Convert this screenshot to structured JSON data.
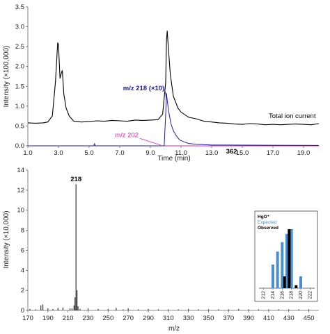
{
  "chart_data": [
    {
      "type": "line",
      "xlabel": "Time (min)",
      "ylabel": "Intensity (×100,000)",
      "xlim": [
        1.0,
        20.0
      ],
      "ylim": [
        0,
        3.5
      ],
      "xticks": [
        "1.0",
        "3.0",
        "5.0",
        "7.0",
        "9.0",
        "11.0",
        "13.0",
        "15.0",
        "17.0",
        "19.0"
      ],
      "yticks": [
        "0.0",
        "0.5",
        "1.0",
        "1.5",
        "2.0",
        "2.5",
        "3.0",
        "3.5"
      ],
      "annotations": [
        {
          "text": "m/z 218 (×10)",
          "color": "#1a1aaa",
          "x": 10.1,
          "y": 1.4
        },
        {
          "text": "Total ion current",
          "color": "#000000",
          "x": 19.8,
          "y": 0.7
        },
        {
          "text": "m/z 202",
          "color": "#e020b0",
          "x": 9.5,
          "y": 0.08
        },
        {
          "text": "362",
          "color": "#000000",
          "x": 14.3,
          "y": 0.0
        }
      ],
      "series": [
        {
          "name": "Total ion current",
          "color": "#000000",
          "x": [
            1.0,
            1.5,
            2.0,
            2.3,
            2.6,
            2.8,
            2.95,
            3.0,
            3.1,
            3.2,
            3.25,
            3.35,
            3.5,
            3.7,
            4.0,
            4.5,
            5.0,
            5.5,
            6.0,
            6.5,
            7.0,
            7.5,
            8.0,
            8.5,
            9.0,
            9.5,
            9.8,
            10.0,
            10.05,
            10.1,
            10.15,
            10.3,
            10.5,
            10.8,
            11.0,
            11.5,
            12.0,
            12.5,
            13.0,
            13.5,
            14.0,
            14.5,
            15.0,
            15.5,
            16.0,
            16.5,
            17.0,
            17.5,
            18.0,
            18.5,
            19.0,
            19.5,
            20.0
          ],
          "y": [
            0.58,
            0.57,
            0.58,
            0.6,
            0.75,
            1.6,
            2.6,
            2.55,
            1.7,
            1.85,
            1.9,
            1.3,
            0.95,
            0.75,
            0.62,
            0.6,
            0.61,
            0.63,
            0.62,
            0.64,
            0.63,
            0.62,
            0.65,
            0.64,
            0.65,
            0.66,
            0.8,
            1.6,
            2.65,
            2.9,
            2.6,
            1.8,
            1.25,
            0.95,
            0.85,
            0.72,
            0.68,
            0.62,
            0.6,
            0.58,
            0.57,
            0.55,
            0.54,
            0.56,
            0.55,
            0.53,
            0.54,
            0.53,
            0.54,
            0.55,
            0.54,
            0.53,
            0.56
          ]
        },
        {
          "name": "m/z 218 (×10)",
          "color": "#1a1aaa",
          "x": [
            1.0,
            5.3,
            5.35,
            5.4,
            5.5,
            9.9,
            10.0,
            10.05,
            10.1,
            10.2,
            10.35,
            10.5,
            10.7,
            10.9,
            11.2,
            11.5,
            12.0,
            13.0,
            14.0,
            20.0
          ],
          "y": [
            0.0,
            0.0,
            0.05,
            0.0,
            0.0,
            0.0,
            0.8,
            1.33,
            1.15,
            0.85,
            0.55,
            0.38,
            0.25,
            0.15,
            0.1,
            0.06,
            0.04,
            0.02,
            0.02,
            0.01
          ]
        },
        {
          "name": "m/z 202",
          "color": "#e020b0",
          "x": [
            1.0,
            20.0
          ],
          "y": [
            0.0,
            0.0
          ]
        }
      ]
    },
    {
      "type": "bar",
      "xlabel": "m/z",
      "ylabel": "Intensity (×10,000)",
      "xlim": [
        170,
        460
      ],
      "ylim": [
        0,
        14
      ],
      "xticks": [
        "170",
        "190",
        "210",
        "230",
        "250",
        "270",
        "290",
        "310",
        "330",
        "350",
        "370",
        "390",
        "410",
        "430",
        "450"
      ],
      "yticks": [
        "0",
        "2",
        "4",
        "6",
        "8",
        "10",
        "12",
        "14"
      ],
      "peak_label": "218",
      "x": [
        172,
        178,
        183,
        185,
        190,
        195,
        200,
        205,
        212,
        214,
        216,
        217,
        218,
        219,
        220,
        222,
        230,
        240,
        250,
        258,
        265,
        270,
        280,
        290,
        300,
        310,
        320,
        330,
        340,
        350,
        360,
        370,
        380,
        390,
        400,
        410,
        420,
        430,
        440,
        450
      ],
      "y": [
        0.15,
        0.1,
        0.5,
        0.6,
        0.2,
        0.15,
        0.25,
        0.3,
        0.2,
        0.2,
        0.5,
        1.3,
        12.6,
        2.0,
        0.4,
        0.15,
        0.2,
        0.15,
        0.15,
        0.25,
        0.1,
        0.2,
        0.1,
        0.15,
        0.1,
        0.1,
        0.1,
        0.15,
        0.1,
        0.1,
        0.1,
        0.1,
        0.15,
        0.1,
        0.1,
        0.1,
        0.1,
        0.1,
        0.1,
        0.1
      ]
    },
    {
      "type": "bar",
      "inset": true,
      "legend": [
        "HgO⁺",
        "Expected",
        "Observed"
      ],
      "legend_colors": [
        "#000000",
        "#4a90d0",
        "#000000"
      ],
      "xticks": [
        "212",
        "214",
        "216",
        "218",
        "220",
        "222"
      ],
      "xlim": [
        211,
        223
      ],
      "ylim": [
        0,
        1
      ],
      "series": [
        {
          "name": "Expected",
          "color": "#4a90d0",
          "x": [
            214,
            215,
            216,
            217,
            218,
            220
          ],
          "y": [
            0.4,
            0.62,
            0.78,
            0.92,
            1.0,
            0.2
          ]
        },
        {
          "name": "Observed",
          "color": "#000000",
          "x": [
            216.5,
            217.5,
            219
          ],
          "y": [
            0.2,
            1.0,
            0.05
          ]
        }
      ]
    }
  ]
}
